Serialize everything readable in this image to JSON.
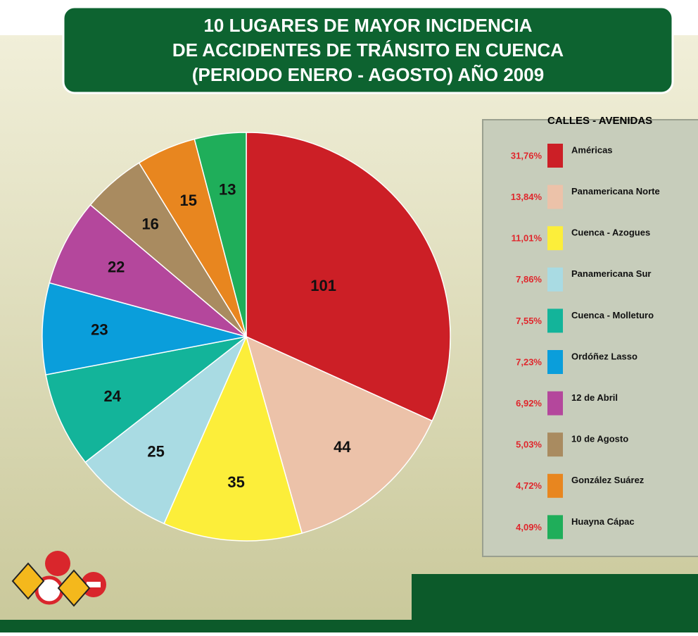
{
  "chart_data": {
    "type": "pie",
    "title": [
      "10 LUGARES DE MAYOR INCIDENCIA",
      "DE ACCIDENTES DE TRÁNSITO EN CUENCA",
      "(PERIODO ENERO - AGOSTO) AÑO 2009"
    ],
    "legend_title": "CALLES - AVENIDAS",
    "categories": [
      "Américas",
      "Panamericana Norte",
      "Cuenca - Azogues",
      "Panamericana Sur",
      "Cuenca - Molleturo",
      "Ordóñez Lasso",
      "12 de Abril",
      "10 de Agosto",
      "González Suárez",
      "Huayna Cápac"
    ],
    "values": [
      101,
      44,
      35,
      25,
      24,
      23,
      22,
      16,
      15,
      13
    ],
    "percent_labels": [
      "31,76%",
      "13,84%",
      "11,01%",
      "7,86%",
      "7,55%",
      "7,23%",
      "6,92%",
      "5,03%",
      "4,72%",
      "4,09%"
    ],
    "colors": [
      "#cc1f26",
      "#ecc2a9",
      "#fcee3a",
      "#a9dbe3",
      "#13b49a",
      "#0a9edb",
      "#b4479c",
      "#a98b60",
      "#e8861f",
      "#1fae5a"
    ],
    "legend_position": "right"
  }
}
